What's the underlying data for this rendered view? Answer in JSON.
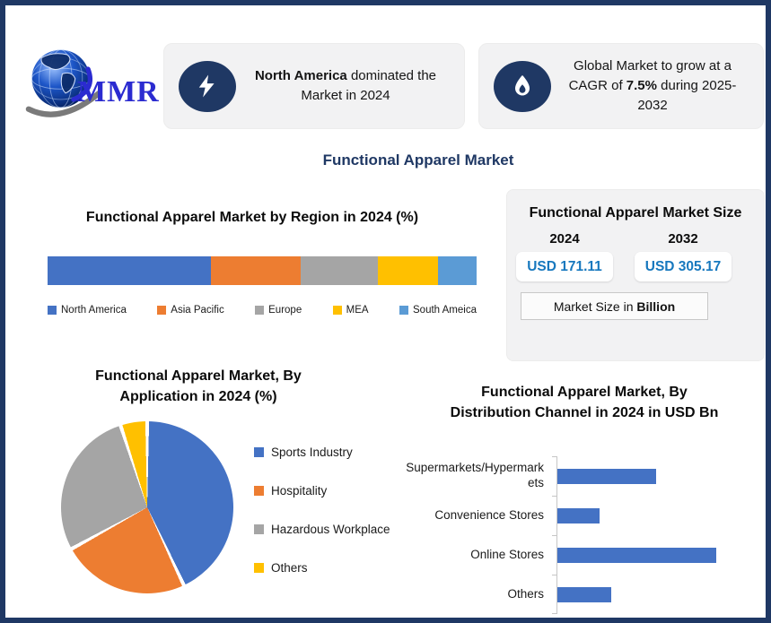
{
  "page": {
    "background": "#FFFFFF",
    "frame_border_color": "#1F3864"
  },
  "brand": {
    "logo_text": "MMR",
    "logo_text_color": "#2B2BD0"
  },
  "highlights": [
    {
      "icon": "lightning-bolt",
      "icon_bg": "#1F3864",
      "bold": "North America",
      "rest": " dominated the Market in 2024"
    },
    {
      "icon": "flame",
      "icon_bg": "#1F3864",
      "pre": "Global Market to grow at a CAGR of ",
      "bold": "7.5%",
      "post": " during 2025-2032"
    }
  ],
  "main_title": "Functional Apparel Market",
  "market_size_panel": {
    "title": "Functional Apparel Market Size",
    "years": [
      "2024",
      "2032"
    ],
    "values": [
      "USD 171.11",
      "USD 305.17"
    ],
    "value_color": "#1778BE",
    "footnote_pre": "Market Size in ",
    "footnote_bold": "Billion"
  },
  "chart_data": [
    {
      "id": "region",
      "type": "bar",
      "variant": "stacked-horizontal-100pct",
      "title": "Functional Apparel Market by Region in 2024 (%)",
      "categories": [
        "North America",
        "Asia Pacific",
        "Europe",
        "MEA",
        "South Ameica"
      ],
      "values": [
        38,
        21,
        18,
        14,
        9
      ],
      "unit": "%",
      "colors": [
        "#4472C4",
        "#ED7D31",
        "#A5A5A5",
        "#FFC000",
        "#5B9BD5"
      ],
      "legend_position": "bottom",
      "axis_labels_shown": false
    },
    {
      "id": "application",
      "type": "pie",
      "title": "Functional Apparel Market, By Application in 2024 (%)",
      "categories": [
        "Sports Industry",
        "Hospitality",
        "Hazardous Workplace",
        "Others"
      ],
      "values": [
        43,
        24,
        28,
        5
      ],
      "unit": "%",
      "colors": [
        "#4472C4",
        "#ED7D31",
        "#A5A5A5",
        "#FFC000"
      ],
      "legend_position": "right",
      "start_angle_deg": 0,
      "direction": "clockwise",
      "slice_separator_color": "#FFFFFF"
    },
    {
      "id": "distribution",
      "type": "bar",
      "variant": "horizontal",
      "title": "Functional Apparel Market, By Distribution Channel in 2024 in USD Bn",
      "categories": [
        "Supermarkets/Hypermarkets",
        "Convenience Stores",
        "Online Stores",
        "Others"
      ],
      "values": [
        48,
        20.5,
        77,
        26
      ],
      "unit": "USD Bn",
      "bar_color": "#4472C4",
      "xlim": [
        0,
        100
      ],
      "value_labels_shown": false,
      "legend_position": "none"
    }
  ]
}
